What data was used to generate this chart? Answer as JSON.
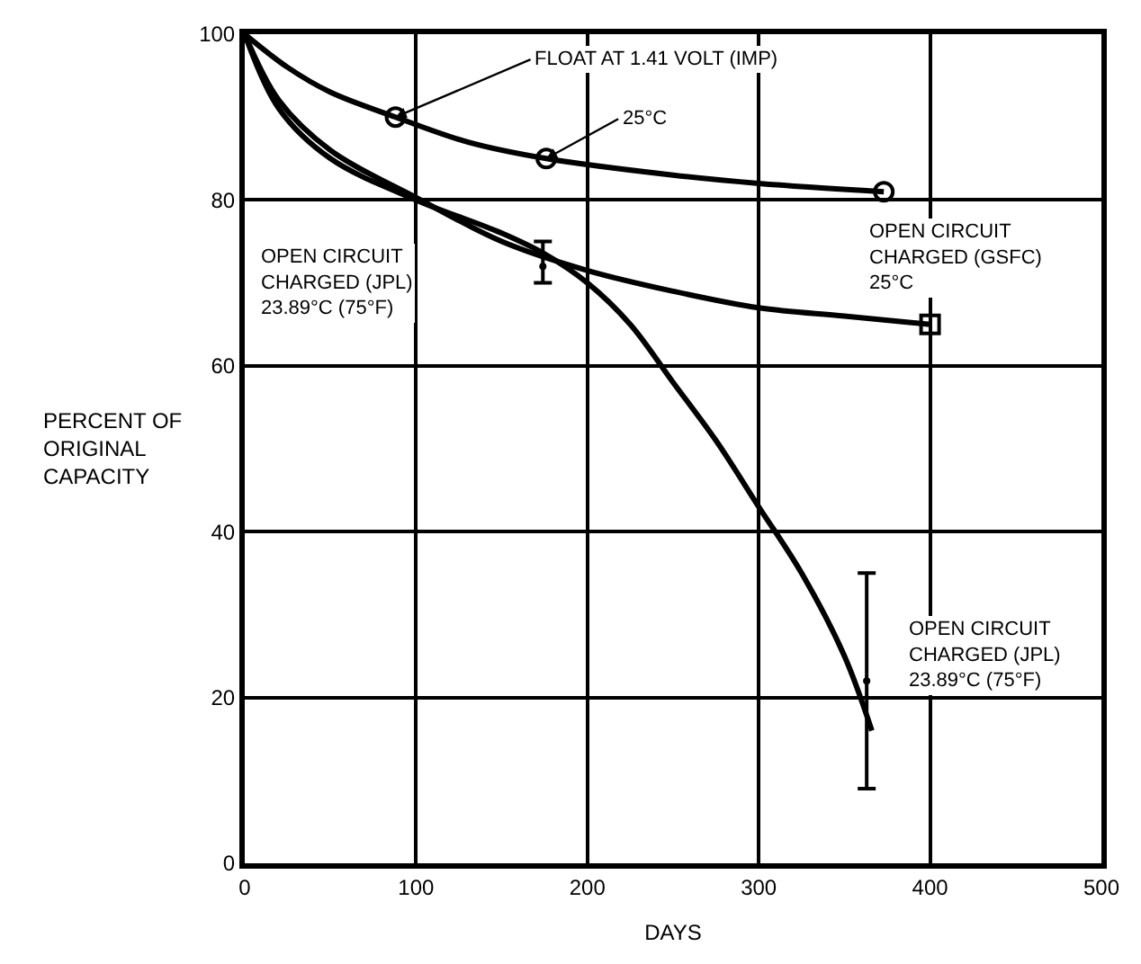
{
  "chart_data": {
    "type": "line",
    "xlabel": "DAYS",
    "ylabel": "PERCENT OF\nORIGINAL\nCAPACITY",
    "xlim": [
      0,
      500
    ],
    "xticks": [
      0,
      100,
      200,
      300,
      400,
      500
    ],
    "ylim": [
      0,
      100
    ],
    "yticks": [
      0,
      20,
      40,
      60,
      80,
      100
    ],
    "grid": true,
    "series": [
      {
        "color": "#000000",
        "marker": "none",
        "x": [
          0,
          25,
          50,
          88,
          130,
          176,
          250,
          300,
          373
        ],
        "values": [
          100,
          96,
          93,
          90,
          87,
          85,
          83,
          82,
          81
        ]
      },
      {
        "type": "scatter",
        "color": "#000000",
        "marker": "circle",
        "x": [
          88,
          176,
          373
        ],
        "values": [
          90,
          85,
          81
        ]
      },
      {
        "color": "#000000",
        "marker": "none",
        "x": [
          0,
          20,
          50,
          100,
          150,
          200,
          250,
          300,
          350,
          400
        ],
        "values": [
          100,
          92,
          86,
          80.3,
          75,
          71.5,
          69,
          67,
          66,
          65
        ]
      },
      {
        "type": "scatter",
        "color": "#000000",
        "marker": "square",
        "x": [
          400
        ],
        "values": [
          65
        ]
      },
      {
        "color": "#000000",
        "marker": "none",
        "x": [
          0,
          20,
          50,
          100,
          150,
          175,
          200,
          225,
          250,
          275,
          300,
          325,
          350,
          366
        ],
        "values": [
          100,
          91,
          85,
          80,
          76,
          73.5,
          70,
          65,
          58,
          51,
          43,
          35,
          25,
          16
        ]
      },
      {
        "type": "scatter",
        "color": "#000000",
        "x": [
          174,
          363
        ],
        "values": [
          72,
          22
        ],
        "errors": [
          [
            70,
            75
          ],
          [
            9,
            35
          ]
        ]
      }
    ],
    "annotations": [
      {
        "text": "FLOAT AT 1.41 VOLT (IMP)",
        "x": 88,
        "y": 90
      },
      {
        "text": "25°C",
        "x": 176,
        "y": 85
      },
      {
        "text": "OPEN CIRCUIT\nCHARGED (GSFC)\n25°C",
        "x": 373,
        "y": 81
      },
      "OPEN CIRCUIT\nCHARGED (JPL)\n23.89°C (75°F)",
      "OPEN CIRCUIT\nCHARGED (JPL)\n23.89°C (75°F)"
    ]
  }
}
